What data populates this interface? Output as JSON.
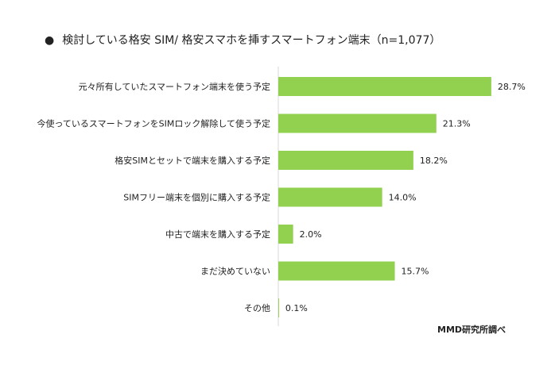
{
  "title": {
    "bullet": "●",
    "text": "検討している格安 SIM/ 格安スマホを挿すスマートフォン端末（n=1,077）"
  },
  "source": "MMD研究所調べ",
  "colors": {
    "bar": "#92d050",
    "axis": "#d9d9d9",
    "text": "#222222"
  },
  "chart_data": {
    "type": "bar",
    "orientation": "horizontal",
    "title": "検討している格安 SIM/ 格安スマホを挿すスマートフォン端末（n=1,077）",
    "categories": [
      "元々所有していたスマートフォン端末を使う予定",
      "今使っているスマートフォンをSIMロック解除して使う予定",
      "格安SIMとセットで端末を購入する予定",
      "SIMフリー端末を個別に購入する予定",
      "中古で端末を購入する予定",
      "まだ決めていない",
      "その他"
    ],
    "values": [
      28.7,
      21.3,
      18.2,
      14.0,
      2.0,
      15.7,
      0.1
    ],
    "value_labels": [
      "28.7%",
      "21.3%",
      "18.2%",
      "14.0%",
      "2.0%",
      "15.7%",
      "0.1%"
    ],
    "unit": "%",
    "xlim": [
      0,
      30
    ],
    "grid": false,
    "legend": "none"
  }
}
